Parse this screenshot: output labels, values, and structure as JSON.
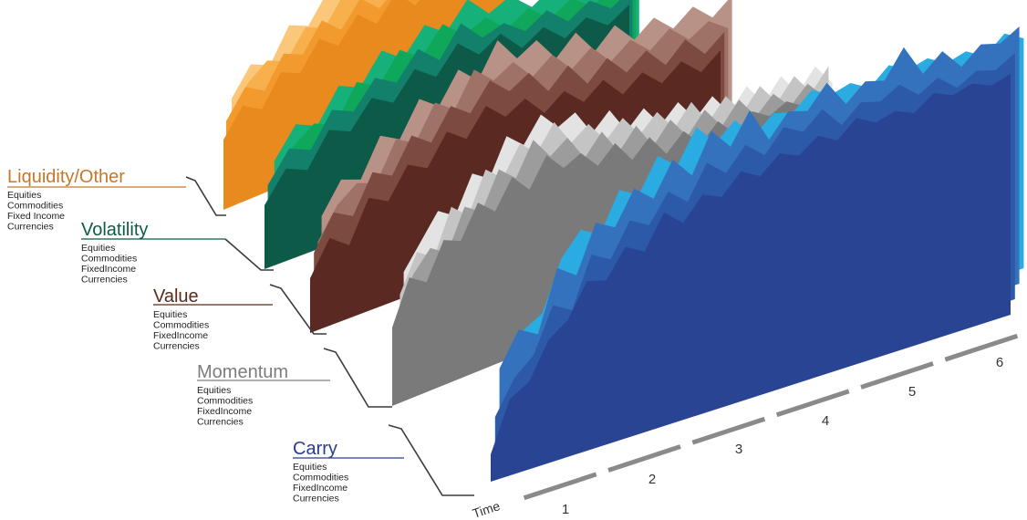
{
  "chart_data": {
    "type": "area",
    "x_axis": {
      "label": "Time",
      "ticks": [
        "1",
        "2",
        "3",
        "4",
        "5",
        "6"
      ]
    },
    "groups": [
      {
        "name": "Carry",
        "color": "#2a3c8f",
        "subcategories": [
          "Equities",
          "Commodities",
          "FixedIncome",
          "Currencies"
        ],
        "series": [
          {
            "name": "Equities",
            "color": "#2a4494",
            "values": [
              0.1,
              0.28,
              0.32,
              0.45,
              0.5,
              0.62,
              0.6,
              0.7,
              0.66,
              0.78,
              0.72,
              0.8,
              0.77,
              0.84,
              0.8,
              0.86,
              0.83,
              0.88,
              0.84,
              0.9,
              0.86,
              0.88,
              0.85,
              0.9,
              0.87,
              0.89,
              0.86,
              0.88
            ]
          },
          {
            "name": "Commodities",
            "color": "#2c5aa8",
            "values": [
              0.18,
              0.3,
              0.36,
              0.52,
              0.48,
              0.66,
              0.62,
              0.74,
              0.7,
              0.8,
              0.74,
              0.86,
              0.8,
              0.88,
              0.82,
              0.9,
              0.86,
              0.92,
              0.84,
              0.9,
              0.88,
              0.92,
              0.86,
              0.9,
              0.84,
              0.88,
              0.86,
              0.9
            ]
          },
          {
            "name": "FixedIncome",
            "color": "#3472bd",
            "values": [
              0.3,
              0.42,
              0.38,
              0.6,
              0.55,
              0.72,
              0.68,
              0.8,
              0.74,
              0.86,
              0.78,
              0.92,
              0.84,
              0.95,
              0.82,
              0.9,
              0.88,
              0.96,
              0.86,
              0.92,
              0.9,
              1.0,
              0.88,
              0.94,
              0.86,
              0.92,
              0.9,
              0.94
            ]
          },
          {
            "name": "Currencies",
            "color": "#2aace2",
            "values": [
              0.22,
              0.36,
              0.4,
              0.58,
              0.66,
              0.62,
              0.76,
              0.72,
              0.84,
              0.78,
              0.9,
              0.82,
              0.88,
              0.8,
              0.86,
              0.84,
              0.9,
              0.86,
              0.88,
              0.84,
              0.9,
              0.86,
              0.88,
              0.84,
              0.86,
              0.82,
              0.88,
              0.84
            ]
          }
        ]
      },
      {
        "name": "Momentum",
        "color": "#7d7d7d",
        "subcategories": [
          "Equities",
          "Commodities",
          "FixedIncome",
          "Currencies"
        ],
        "series": [
          {
            "name": "Equities",
            "color": "#7a7a7a",
            "values": [
              0.4,
              0.62,
              0.56,
              0.74,
              0.7,
              0.86,
              0.78,
              0.92,
              0.82,
              0.96,
              0.86,
              0.9,
              0.8,
              0.88,
              0.76,
              0.84,
              0.72,
              0.8,
              0.7,
              0.78,
              0.68,
              0.76,
              0.7,
              0.74,
              0.68,
              0.72
            ]
          },
          {
            "name": "Commodities",
            "color": "#9c9c9c",
            "values": [
              0.36,
              0.56,
              0.66,
              0.6,
              0.8,
              0.74,
              0.92,
              0.84,
              1.0,
              0.88,
              0.94,
              0.8,
              0.9,
              0.76,
              0.86,
              0.72,
              0.82,
              0.7,
              0.8,
              0.68,
              0.78,
              0.66,
              0.74,
              0.64,
              0.72,
              0.62
            ]
          },
          {
            "name": "FixedIncome",
            "color": "#c4c4c4",
            "values": [
              0.42,
              0.6,
              0.54,
              0.76,
              0.68,
              0.88,
              0.8,
              0.94,
              0.86,
              0.98,
              0.84,
              0.9,
              0.78,
              0.86,
              0.74,
              0.82,
              0.7,
              0.8,
              0.66,
              0.76,
              0.64,
              0.74,
              0.62,
              0.72,
              0.6,
              0.7
            ]
          },
          {
            "name": "Currencies",
            "color": "#e3e3e3",
            "values": [
              0.46,
              0.58,
              0.7,
              0.64,
              0.82,
              0.76,
              0.94,
              0.86,
              0.98,
              0.88,
              0.92,
              0.78,
              0.86,
              0.72,
              0.8,
              0.68,
              0.76,
              0.64,
              0.72,
              0.6,
              0.7,
              0.58,
              0.68,
              0.56,
              0.66,
              0.54
            ]
          }
        ]
      },
      {
        "name": "Value",
        "color": "#5b2a1c",
        "subcategories": [
          "Equities",
          "Commodities",
          "FixedIncome",
          "Currencies"
        ],
        "series": [
          {
            "name": "Equities",
            "color": "#5a2a22",
            "values": [
              0.3,
              0.48,
              0.4,
              0.62,
              0.56,
              0.72,
              0.66,
              0.82,
              0.74,
              0.88,
              0.78,
              0.84,
              0.72,
              0.8,
              0.7,
              0.78,
              0.66,
              0.74,
              0.64,
              0.72,
              0.62,
              0.7
            ]
          },
          {
            "name": "Commodities",
            "color": "#7c4a3e",
            "values": [
              0.36,
              0.54,
              0.48,
              0.68,
              0.62,
              0.8,
              0.72,
              0.88,
              0.8,
              0.94,
              0.84,
              0.9,
              0.76,
              0.86,
              0.72,
              0.82,
              0.7,
              0.78,
              0.66,
              0.76,
              0.64,
              0.72
            ]
          },
          {
            "name": "FixedIncome",
            "color": "#9e7266",
            "values": [
              0.34,
              0.5,
              0.58,
              0.54,
              0.74,
              0.68,
              0.86,
              0.78,
              0.96,
              0.86,
              0.92,
              0.8,
              0.88,
              0.76,
              0.84,
              0.72,
              0.8,
              0.7,
              0.78,
              0.68,
              0.74,
              0.66
            ]
          },
          {
            "name": "Currencies",
            "color": "#b89286",
            "values": [
              0.4,
              0.56,
              0.52,
              0.72,
              0.66,
              0.84,
              0.76,
              0.92,
              0.82,
              1.0,
              0.86,
              0.92,
              0.78,
              0.88,
              0.74,
              0.84,
              0.72,
              0.8,
              0.7,
              0.78,
              0.68,
              0.76
            ]
          }
        ]
      },
      {
        "name": "Volatility",
        "color": "#0b5c45",
        "subcategories": [
          "Equities",
          "Commodities",
          "FixedIncome",
          "Currencies"
        ],
        "series": [
          {
            "name": "Equities",
            "color": "#0d5a48",
            "values": [
              0.4,
              0.58,
              0.52,
              0.72,
              0.66,
              0.82,
              0.74,
              0.9,
              0.8,
              0.96,
              0.84,
              0.92,
              0.78,
              0.86,
              0.74,
              0.82,
              0.72,
              0.8
            ]
          },
          {
            "name": "Commodities",
            "color": "#12806a",
            "values": [
              0.44,
              0.62,
              0.56,
              0.76,
              0.7,
              0.86,
              0.78,
              0.94,
              0.82,
              1.0,
              0.86,
              0.9,
              0.8,
              0.88,
              0.76,
              0.84,
              0.74,
              0.82
            ]
          },
          {
            "name": "FixedIncome",
            "color": "#0fa75a",
            "values": [
              0.36,
              0.54,
              0.64,
              0.58,
              0.8,
              0.72,
              0.9,
              0.8,
              0.96,
              0.84,
              0.9,
              0.78,
              0.86,
              0.74,
              0.82,
              0.72,
              0.8,
              0.7
            ]
          },
          {
            "name": "Currencies",
            "color": "#16b07a",
            "values": [
              0.42,
              0.6,
              0.54,
              0.74,
              0.68,
              0.86,
              0.76,
              0.92,
              0.82,
              0.98,
              0.84,
              0.9,
              0.78,
              0.86,
              0.74,
              0.84,
              0.72,
              0.8
            ]
          }
        ]
      },
      {
        "name": "Liquidity/Other",
        "color": "#c6782a",
        "subcategories": [
          "Equities",
          "Commodities",
          "Fixed Income",
          "Currencies"
        ],
        "series": [
          {
            "name": "Equities",
            "color": "#e88a1e",
            "values": [
              0.48,
              0.66,
              0.58,
              0.78,
              0.72,
              0.9,
              0.8,
              0.96,
              0.84,
              1.0,
              0.86,
              0.94,
              0.8,
              0.9,
              0.78,
              0.88
            ]
          },
          {
            "name": "Commodities",
            "color": "#f39a2e",
            "values": [
              0.52,
              0.7,
              0.62,
              0.82,
              0.76,
              0.94,
              0.82,
              0.98,
              0.86,
              0.96,
              0.84,
              0.92,
              0.8,
              0.9,
              0.78,
              0.86
            ]
          },
          {
            "name": "Fixed Income",
            "color": "#f7b04c",
            "values": [
              0.46,
              0.64,
              0.74,
              0.68,
              0.86,
              0.8,
              0.98,
              0.88,
              1.0,
              0.9,
              0.96,
              0.84,
              0.92,
              0.82,
              0.88,
              0.8
            ]
          },
          {
            "name": "Currencies",
            "color": "#fbc77a",
            "values": [
              0.5,
              0.68,
              0.62,
              0.84,
              0.78,
              0.96,
              0.86,
              1.0,
              0.9,
              0.98,
              0.88,
              0.94,
              0.84,
              0.9,
              0.82,
              0.88
            ]
          }
        ]
      }
    ],
    "grid": false,
    "legend": "left"
  }
}
